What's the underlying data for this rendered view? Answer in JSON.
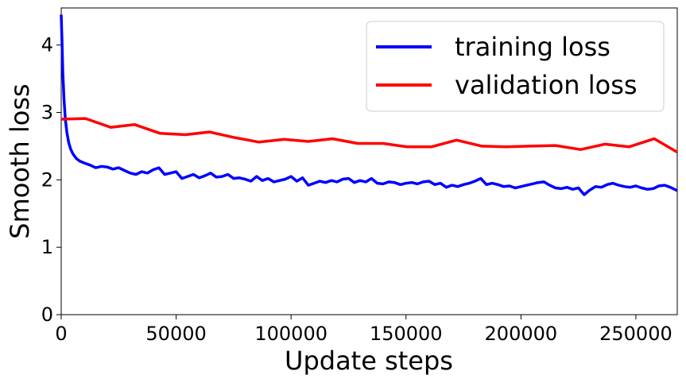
{
  "chart_data": {
    "type": "line",
    "title": "",
    "xlabel": "Update steps",
    "ylabel": "Smooth loss",
    "xlim": [
      0,
      268000
    ],
    "ylim": [
      0,
      4.55
    ],
    "xticks": [
      0,
      50000,
      100000,
      150000,
      200000,
      250000
    ],
    "xtick_labels": [
      "0",
      "50000",
      "100000",
      "150000",
      "200000",
      "250000"
    ],
    "yticks": [
      0,
      1,
      2,
      3,
      4
    ],
    "ytick_labels": [
      "0",
      "1",
      "2",
      "3",
      "4"
    ],
    "grid": false,
    "legend_position": "top-right",
    "series": [
      {
        "name": "training loss",
        "color": "#0000ff",
        "x": [
          0,
          300,
          700,
          1200,
          1800,
          2500,
          3300,
          4200,
          5200,
          6500,
          8000,
          10000,
          12500,
          15000,
          17500,
          20000,
          22500,
          25000,
          27500,
          30000,
          32500,
          35000,
          37500,
          40000,
          42500,
          45000,
          47500,
          50000,
          52500,
          55000,
          57500,
          60000,
          62500,
          65000,
          67500,
          70000,
          72500,
          75000,
          77500,
          80000,
          82500,
          85000,
          87500,
          90000,
          92500,
          95000,
          97500,
          100000,
          102500,
          105000,
          107500,
          110000,
          112500,
          115000,
          117500,
          120000,
          122500,
          125000,
          127500,
          130000,
          132500,
          135000,
          137500,
          140000,
          142500,
          145000,
          147500,
          150000,
          152500,
          155000,
          157500,
          160000,
          162500,
          165000,
          167500,
          170000,
          172500,
          175000,
          177500,
          180000,
          182500,
          185000,
          187500,
          190000,
          192500,
          195000,
          197500,
          200000,
          202500,
          205000,
          207500,
          210000,
          212500,
          215000,
          217500,
          220000,
          222500,
          225000,
          227500,
          230000,
          232500,
          235000,
          237500,
          240000,
          242500,
          245000,
          247500,
          250000,
          252500,
          255000,
          257500,
          260000,
          262500,
          265000,
          268000
        ],
        "y": [
          4.45,
          4.1,
          3.6,
          3.2,
          2.9,
          2.7,
          2.55,
          2.45,
          2.38,
          2.32,
          2.28,
          2.25,
          2.22,
          2.18,
          2.2,
          2.19,
          2.16,
          2.18,
          2.14,
          2.1,
          2.08,
          2.12,
          2.1,
          2.15,
          2.18,
          2.08,
          2.1,
          2.12,
          2.02,
          2.05,
          2.08,
          2.03,
          2.06,
          2.1,
          2.04,
          2.05,
          2.08,
          2.02,
          2.03,
          2.01,
          1.98,
          2.05,
          1.99,
          2.02,
          1.97,
          1.99,
          2.01,
          2.05,
          1.98,
          2.03,
          1.92,
          1.95,
          1.98,
          1.96,
          1.99,
          1.97,
          2.01,
          2.02,
          1.96,
          1.99,
          1.97,
          2.02,
          1.95,
          1.94,
          1.97,
          1.96,
          1.93,
          1.95,
          1.96,
          1.94,
          1.97,
          1.98,
          1.93,
          1.95,
          1.89,
          1.92,
          1.9,
          1.93,
          1.95,
          1.98,
          2.02,
          1.93,
          1.95,
          1.93,
          1.9,
          1.91,
          1.88,
          1.9,
          1.92,
          1.94,
          1.96,
          1.97,
          1.92,
          1.88,
          1.87,
          1.89,
          1.86,
          1.88,
          1.78,
          1.85,
          1.9,
          1.89,
          1.93,
          1.95,
          1.92,
          1.9,
          1.89,
          1.91,
          1.88,
          1.86,
          1.87,
          1.91,
          1.92,
          1.89,
          1.84
        ]
      },
      {
        "name": "validation loss",
        "color": "#ff0000",
        "x": [
          0,
          10500,
          21500,
          32000,
          43000,
          54000,
          64500,
          75000,
          86000,
          97000,
          107500,
          118000,
          129000,
          140000,
          150500,
          161000,
          172000,
          183000,
          193500,
          204000,
          215000,
          226000,
          236500,
          247000,
          258000,
          268000
        ],
        "y": [
          2.9,
          2.91,
          2.78,
          2.82,
          2.69,
          2.67,
          2.71,
          2.63,
          2.56,
          2.6,
          2.57,
          2.61,
          2.54,
          2.54,
          2.49,
          2.49,
          2.59,
          2.5,
          2.49,
          2.5,
          2.51,
          2.45,
          2.53,
          2.49,
          2.61,
          2.41
        ]
      }
    ]
  }
}
